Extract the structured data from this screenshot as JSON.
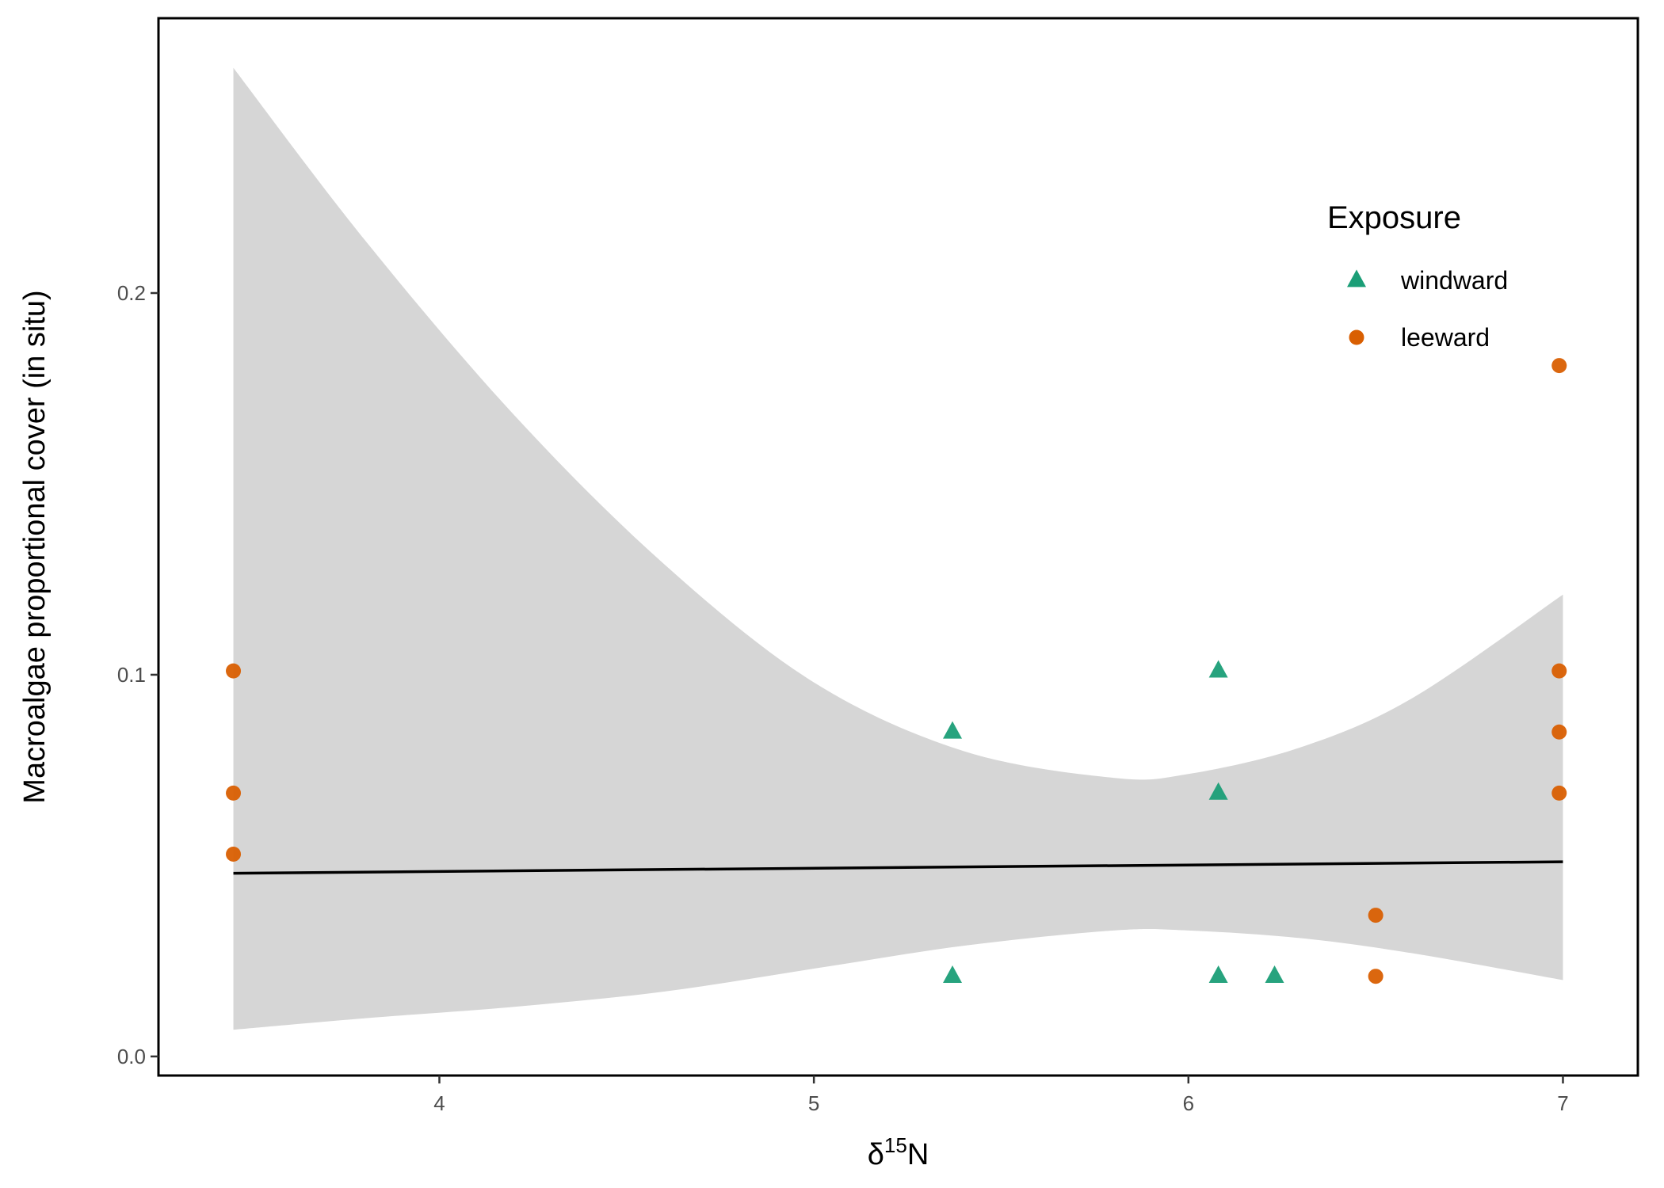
{
  "chart_data": {
    "type": "scatter",
    "title": "",
    "xlabel": {
      "main": "δ",
      "superscript": "15",
      "suffix": "N"
    },
    "ylabel": "Macroalgae proportional cover (in situ)",
    "xlim": [
      3.25,
      7.2
    ],
    "ylim": [
      -0.005,
      0.272
    ],
    "x_ticks": [
      4,
      5,
      6,
      7
    ],
    "x_tick_labels": [
      "4",
      "5",
      "6",
      "7"
    ],
    "y_ticks": [
      0.0,
      0.1,
      0.2
    ],
    "y_tick_labels": [
      "0.0",
      "0.1",
      "0.2"
    ],
    "grid": false,
    "legend": {
      "title": "Exposure",
      "placement": "top-right inside"
    },
    "series": [
      {
        "name": "windward",
        "marker": "triangle",
        "color": "#1b9e77",
        "points": [
          {
            "x": 5.37,
            "y": 0.085
          },
          {
            "x": 5.37,
            "y": 0.021
          },
          {
            "x": 6.08,
            "y": 0.101
          },
          {
            "x": 6.08,
            "y": 0.069
          },
          {
            "x": 6.08,
            "y": 0.021
          },
          {
            "x": 6.23,
            "y": 0.021
          }
        ]
      },
      {
        "name": "leeward",
        "marker": "circle",
        "color": "#d95f02",
        "points": [
          {
            "x": 3.45,
            "y": 0.101
          },
          {
            "x": 3.45,
            "y": 0.069
          },
          {
            "x": 3.45,
            "y": 0.053
          },
          {
            "x": 6.5,
            "y": 0.037
          },
          {
            "x": 6.5,
            "y": 0.021
          },
          {
            "x": 6.99,
            "y": 0.181
          },
          {
            "x": 6.99,
            "y": 0.101
          },
          {
            "x": 6.99,
            "y": 0.085
          },
          {
            "x": 6.99,
            "y": 0.069
          }
        ]
      }
    ],
    "fit_line": {
      "color": "#000000",
      "points": [
        {
          "x": 3.45,
          "y": 0.048
        },
        {
          "x": 7.0,
          "y": 0.051
        }
      ]
    },
    "confidence_band": {
      "color": "#d6d6d6",
      "x": [
        3.45,
        3.8,
        4.2,
        4.6,
        5.0,
        5.4,
        5.8,
        6.0,
        6.3,
        6.6,
        7.0
      ],
      "upper": [
        0.259,
        0.214,
        0.168,
        0.129,
        0.098,
        0.08,
        0.073,
        0.074,
        0.081,
        0.094,
        0.121
      ],
      "lower": [
        0.007,
        0.01,
        0.013,
        0.017,
        0.023,
        0.029,
        0.033,
        0.033,
        0.031,
        0.027,
        0.02
      ]
    }
  }
}
